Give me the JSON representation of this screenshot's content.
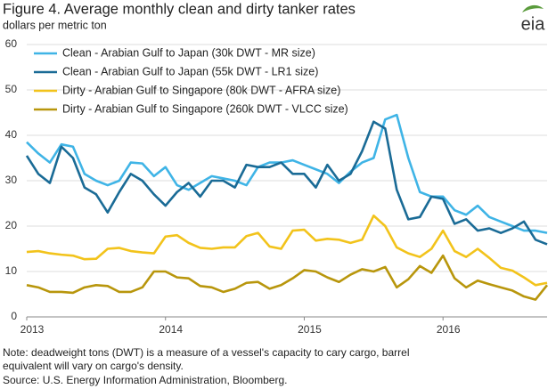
{
  "chart_data": {
    "type": "line",
    "title": "Figure 4. Average monthly clean and dirty tanker rates",
    "subtitle": "dollars per metric ton",
    "logo": "eia",
    "note": "Note: deadweight tons (DWT) is a measure of a vessel's capacity to cary cargo, barrel equivalent will vary on cargo's density.",
    "source": "Source: U.S. Energy Information Administration, Bloomberg.",
    "categories": [
      "2013",
      null,
      null,
      null,
      null,
      null,
      null,
      null,
      null,
      null,
      null,
      null,
      "2014",
      null,
      null,
      null,
      null,
      null,
      null,
      null,
      null,
      null,
      null,
      null,
      "2015",
      null,
      null,
      null,
      null,
      null,
      null,
      null,
      null,
      null,
      null,
      null,
      "2016",
      null,
      null,
      null,
      null,
      null,
      null,
      null,
      null,
      null
    ],
    "ylim": [
      0,
      60
    ],
    "yticks": [
      0,
      10,
      20,
      30,
      40,
      50,
      60
    ],
    "grid": true,
    "legend": "top-left",
    "series": [
      {
        "name": "Clean - Arabian Gulf to Japan (30k DWT - MR size)",
        "color": "#3fb4e6",
        "values": [
          38.5,
          36,
          34,
          38,
          37.5,
          31.5,
          30,
          29,
          30,
          34,
          33.8,
          31,
          33,
          29,
          28,
          29.5,
          31,
          30.5,
          30,
          29,
          33,
          34,
          34,
          34.5,
          33.5,
          32.5,
          31.5,
          29.5,
          32,
          34,
          35,
          43.5,
          44.5,
          35,
          27.5,
          26.5,
          26.5,
          23.5,
          22.5,
          24.5,
          22,
          21,
          20,
          19,
          19,
          18.5
        ]
      },
      {
        "name": "Clean - Arabian Gulf to Japan (55k DWT - LR1 size)",
        "color": "#1a6b96",
        "values": [
          35.5,
          31.5,
          29.5,
          37.5,
          35,
          28.5,
          27,
          23,
          27.5,
          31.5,
          30,
          27,
          24.5,
          27.5,
          29.5,
          26.5,
          30,
          30,
          28.5,
          33.5,
          33,
          33,
          34,
          31.5,
          31.5,
          28.5,
          33.5,
          30,
          31.5,
          36.5,
          43,
          41.5,
          28,
          21.5,
          22,
          26.5,
          26,
          20.5,
          21.5,
          19,
          19.5,
          18.5,
          19.5,
          21,
          17,
          16
        ]
      },
      {
        "name": "Dirty - Arabian Gulf to Singapore (80k DWT - AFRA size)",
        "color": "#f2c31b",
        "values": [
          14.3,
          14.5,
          14,
          13.7,
          13.5,
          12.7,
          12.8,
          15,
          15.2,
          14.5,
          14.2,
          14,
          17.7,
          18,
          16.3,
          15.2,
          15,
          15.3,
          15.3,
          17.8,
          18.5,
          15.5,
          15,
          19,
          19.2,
          16.8,
          17.2,
          17,
          16.3,
          17,
          22.3,
          20,
          15.3,
          14,
          13.2,
          15,
          19,
          14.5,
          13.2,
          15,
          13,
          10.8,
          10.2,
          8.7,
          7,
          7.5
        ]
      },
      {
        "name": "Dirty - Arabian Gulf to Singapore (260k DWT - VLCC size)",
        "color": "#b8960c",
        "values": [
          7,
          6.5,
          5.5,
          5.5,
          5.3,
          6.5,
          7,
          6.8,
          5.5,
          5.5,
          6.5,
          10,
          10,
          8.7,
          8.5,
          6.8,
          6.5,
          5.5,
          6.2,
          7.5,
          7.7,
          6.2,
          7,
          8.5,
          10.3,
          10,
          8.7,
          7.7,
          9.3,
          10.5,
          10,
          11,
          6.5,
          8.3,
          11.2,
          9.7,
          13.5,
          8.5,
          6.5,
          8,
          7.2,
          6.5,
          5.8,
          4.5,
          3.8,
          7
        ]
      }
    ]
  }
}
